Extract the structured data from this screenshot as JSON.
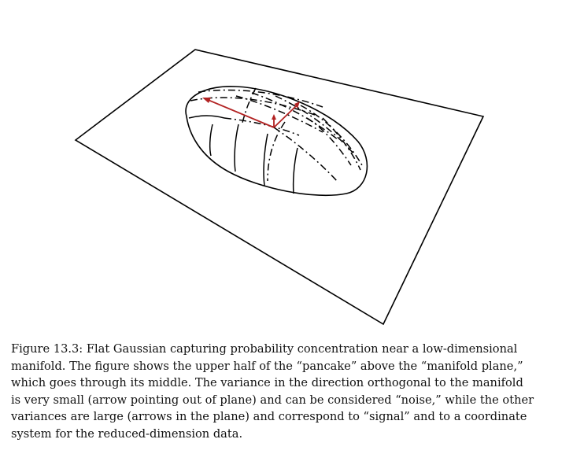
{
  "figure": {
    "caption_lines": [
      "Figure 13.3: Flat Gaussian capturing probability concentration near a low-dimensional",
      "manifold. The figure shows the upper half of the “pancake” above the “manifold plane,”",
      "which goes through its middle. The variance in the direction orthogonal to the manifold",
      "is very small (arrow pointing out of plane) and can be considered “noise,” while the other",
      "variances are large (arrows in the plane) and correspond to “signal” and to a coordinate",
      "system for the reduced-dimension data."
    ],
    "colors": {
      "line": "#000000",
      "arrow": "#b22222"
    }
  }
}
